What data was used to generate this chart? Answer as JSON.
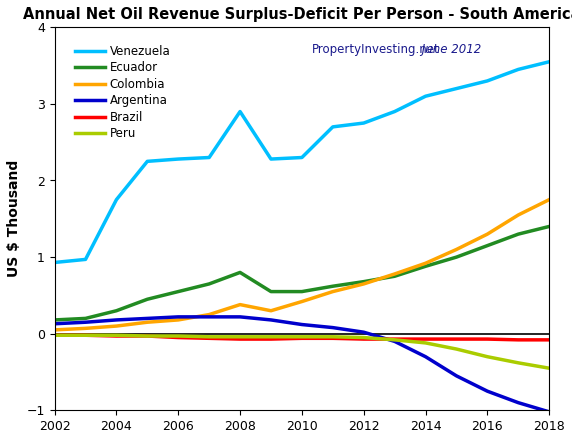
{
  "title": "Annual Net Oil Revenue Surplus-Deficit Per Person - South America",
  "ylabel": "US $ Thousand",
  "watermark_normal": "PropertyInvesting.net",
  "watermark_italic": " June 2012",
  "xlim": [
    2002,
    2018
  ],
  "ylim": [
    -1,
    4
  ],
  "yticks": [
    -1,
    0,
    1,
    2,
    3,
    4
  ],
  "xticks": [
    2002,
    2004,
    2006,
    2008,
    2010,
    2012,
    2014,
    2016,
    2018
  ],
  "series": {
    "Venezuela": {
      "color": "#00BFFF",
      "x": [
        2002,
        2003,
        2004,
        2005,
        2006,
        2007,
        2008,
        2009,
        2010,
        2011,
        2012,
        2013,
        2014,
        2015,
        2016,
        2017,
        2018
      ],
      "y": [
        0.93,
        0.97,
        1.75,
        2.25,
        2.28,
        2.3,
        2.9,
        2.28,
        2.3,
        2.7,
        2.75,
        2.9,
        3.1,
        3.2,
        3.3,
        3.45,
        3.55
      ]
    },
    "Ecuador": {
      "color": "#228B22",
      "x": [
        2002,
        2003,
        2004,
        2005,
        2006,
        2007,
        2008,
        2009,
        2010,
        2011,
        2012,
        2013,
        2014,
        2015,
        2016,
        2017,
        2018
      ],
      "y": [
        0.18,
        0.2,
        0.3,
        0.45,
        0.55,
        0.65,
        0.8,
        0.55,
        0.55,
        0.62,
        0.68,
        0.75,
        0.88,
        1.0,
        1.15,
        1.3,
        1.4
      ]
    },
    "Colombia": {
      "color": "#FFA500",
      "x": [
        2002,
        2003,
        2004,
        2005,
        2006,
        2007,
        2008,
        2009,
        2010,
        2011,
        2012,
        2013,
        2014,
        2015,
        2016,
        2017,
        2018
      ],
      "y": [
        0.05,
        0.07,
        0.1,
        0.15,
        0.18,
        0.25,
        0.38,
        0.3,
        0.42,
        0.55,
        0.65,
        0.78,
        0.92,
        1.1,
        1.3,
        1.55,
        1.75
      ]
    },
    "Argentina": {
      "color": "#0000CC",
      "x": [
        2002,
        2003,
        2004,
        2005,
        2006,
        2007,
        2008,
        2009,
        2010,
        2011,
        2012,
        2013,
        2014,
        2015,
        2016,
        2017,
        2018
      ],
      "y": [
        0.13,
        0.15,
        0.18,
        0.2,
        0.22,
        0.22,
        0.22,
        0.18,
        0.12,
        0.08,
        0.02,
        -0.1,
        -0.3,
        -0.55,
        -0.75,
        -0.9,
        -1.02
      ]
    },
    "Brazil": {
      "color": "#FF0000",
      "x": [
        2002,
        2003,
        2004,
        2005,
        2006,
        2007,
        2008,
        2009,
        2010,
        2011,
        2012,
        2013,
        2014,
        2015,
        2016,
        2017,
        2018
      ],
      "y": [
        -0.02,
        -0.02,
        -0.03,
        -0.03,
        -0.05,
        -0.06,
        -0.07,
        -0.07,
        -0.06,
        -0.06,
        -0.07,
        -0.07,
        -0.07,
        -0.07,
        -0.07,
        -0.08,
        -0.08
      ]
    },
    "Peru": {
      "color": "#AACC00",
      "x": [
        2002,
        2003,
        2004,
        2005,
        2006,
        2007,
        2008,
        2009,
        2010,
        2011,
        2012,
        2013,
        2014,
        2015,
        2016,
        2017,
        2018
      ],
      "y": [
        -0.02,
        -0.02,
        -0.02,
        -0.03,
        -0.03,
        -0.04,
        -0.04,
        -0.04,
        -0.04,
        -0.04,
        -0.05,
        -0.08,
        -0.12,
        -0.2,
        -0.3,
        -0.38,
        -0.45
      ]
    }
  }
}
